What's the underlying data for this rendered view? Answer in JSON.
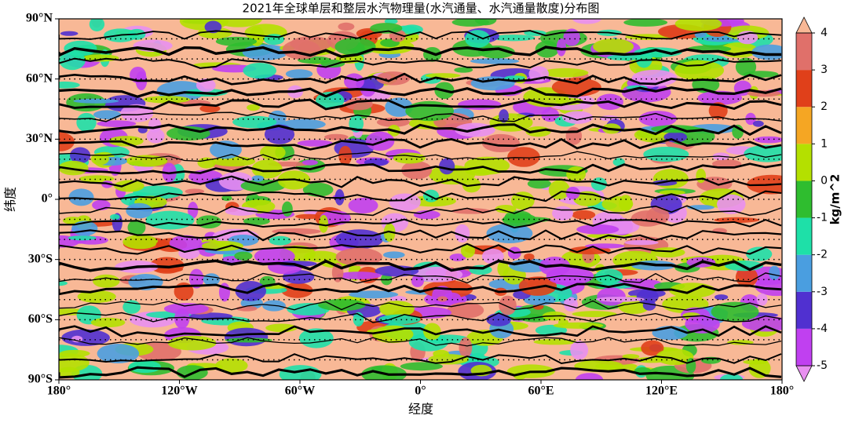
{
  "chart_data": {
    "type": "contour-map",
    "title": "2021年全球单层和整层水汽物理量(水汽通量、水汽通量散度)分布图",
    "x_label": "经度",
    "y_label": "纬度",
    "xlim": [
      -180,
      180
    ],
    "ylim": [
      -90,
      90
    ],
    "xticks": [
      {
        "value": -180,
        "label": "180°"
      },
      {
        "value": -120,
        "label": "120°W"
      },
      {
        "value": -60,
        "label": "60°W"
      },
      {
        "value": 0,
        "label": "0°"
      },
      {
        "value": 60,
        "label": "60°E"
      },
      {
        "value": 120,
        "label": "120°E"
      },
      {
        "value": 180,
        "label": "180°"
      }
    ],
    "yticks": [
      {
        "value": 90,
        "label": "90°N"
      },
      {
        "value": 60,
        "label": "60°N"
      },
      {
        "value": 30,
        "label": "30°N"
      },
      {
        "value": 0,
        "label": "0°"
      },
      {
        "value": -30,
        "label": "30°S"
      },
      {
        "value": -60,
        "label": "60°S"
      },
      {
        "value": -90,
        "label": "90°S"
      }
    ],
    "colorbar": {
      "label": "kg/m^2",
      "lim": [
        -5,
        4
      ],
      "ticks": [
        -5,
        -4,
        -3,
        -2,
        -1,
        0,
        1,
        2,
        3,
        4
      ],
      "colors": [
        "#e890f0",
        "#c040f0",
        "#5030d0",
        "#4a9ee0",
        "#1ee0a8",
        "#2fbd2f",
        "#b4e000",
        "#f5a623",
        "#e0401a",
        "#e0706a",
        "#f8b896"
      ]
    }
  }
}
